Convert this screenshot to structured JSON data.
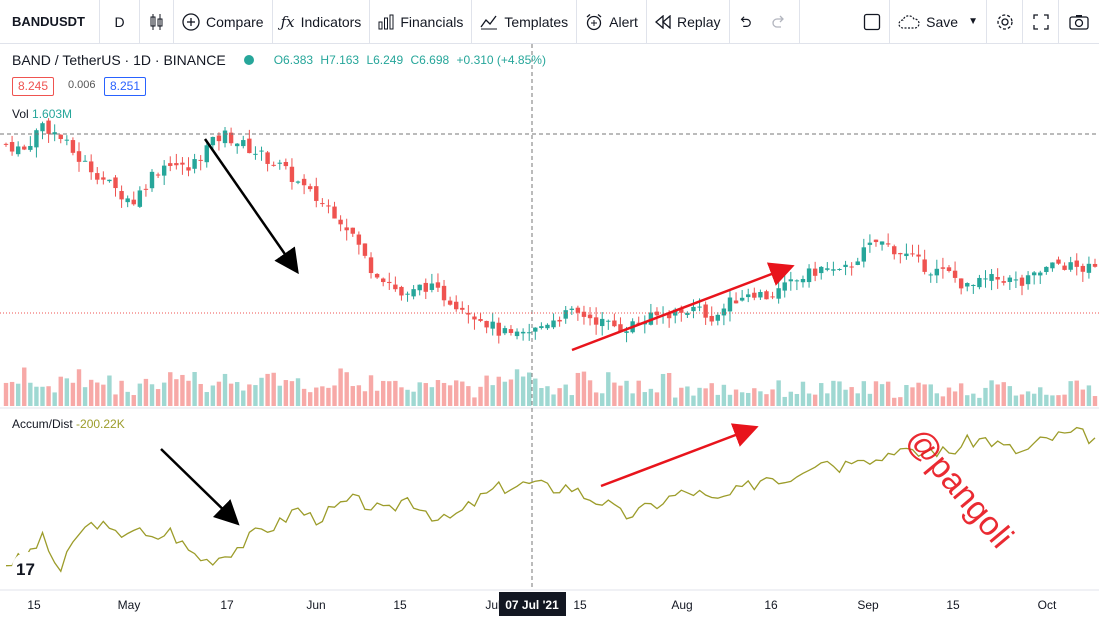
{
  "toolbar": {
    "symbol": "BANDUSDT",
    "interval": "D",
    "compare": "Compare",
    "indicators": "Indicators",
    "financials": "Financials",
    "templates": "Templates",
    "alert": "Alert",
    "replay": "Replay",
    "save": "Save"
  },
  "legend": {
    "title": "BAND / TetherUS · 1D · BINANCE",
    "open": "O6.383",
    "high": "H7.163",
    "low": "L6.249",
    "close": "C6.698",
    "change": "+0.310 (+4.85%)",
    "bid": "8.245",
    "spread": "0.006",
    "ask": "8.251"
  },
  "volume": {
    "label": "Vol",
    "value": "1.603M"
  },
  "accum": {
    "label": "Accum/Dist",
    "value": "-200.22K"
  },
  "watermark": "@pangoli",
  "crosshair_date": "07 Jul '21",
  "colors": {
    "up": "#26a69a",
    "down": "#ef5350",
    "ad_line": "#9c9c2a",
    "annot_red": "#e8141c"
  },
  "chart_data": [
    {
      "type": "candlestick",
      "title": "BAND / TetherUS · 1D · BINANCE",
      "x_tick_labels": [
        "15",
        "May",
        "17",
        "Jun",
        "15",
        "Jul",
        "15",
        "Aug",
        "16",
        "Sep",
        "15",
        "Oct"
      ],
      "price_range": [
        4.0,
        20.0
      ],
      "close_trend": [
        16.4,
        16.1,
        17.4,
        16.7,
        15.7,
        15.0,
        14.2,
        13.6,
        14.9,
        15.6,
        15.1,
        16.2,
        16.9,
        16.4,
        15.9,
        15.4,
        14.6,
        13.8,
        13.2,
        12.2,
        10.5,
        9.8,
        8.9,
        9.6,
        9.1,
        8.6,
        8.1,
        7.4,
        7.0,
        7.3,
        7.9,
        8.2,
        8.1,
        7.7,
        7.5,
        7.8,
        8.1,
        8.3,
        8.4,
        8.0,
        8.8,
        9.3,
        9.0,
        9.5,
        10.0,
        10.4,
        10.1,
        11.0,
        11.7,
        11.3,
        10.8,
        10.3,
        10.1,
        9.4,
        9.8,
        9.9,
        9.6,
        10.2,
        10.6,
        10.4,
        10.3
      ],
      "accum_dist_trend": [
        -0.6,
        -0.4,
        0.3,
        -0.9,
        0.5,
        0.9,
        0.4,
        0.7,
        0.2,
        0.6,
        -0.1,
        -0.5,
        -0.3,
        0.1,
        0.6,
        0.8,
        1.4,
        1.0,
        1.3,
        1.7,
        1.5,
        1.2,
        1.8,
        1.4,
        0.9,
        1.2,
        1.7,
        2.1,
        2.2,
        2.3,
        2.1,
        2.2,
        1.8,
        1.6,
        1.1,
        1.3,
        1.6,
        1.9,
        2.0,
        1.6,
        1.9,
        2.2,
        2.6,
        2.4,
        2.9,
        3.2,
        2.9,
        3.4,
        3.1,
        3.6,
        3.3,
        3.5,
        3.4,
        3.8,
        3.9,
        3.6,
        3.4,
        3.8,
        4.0,
        4.1,
        3.9
      ],
      "ylabel": "",
      "xlabel": ""
    }
  ]
}
